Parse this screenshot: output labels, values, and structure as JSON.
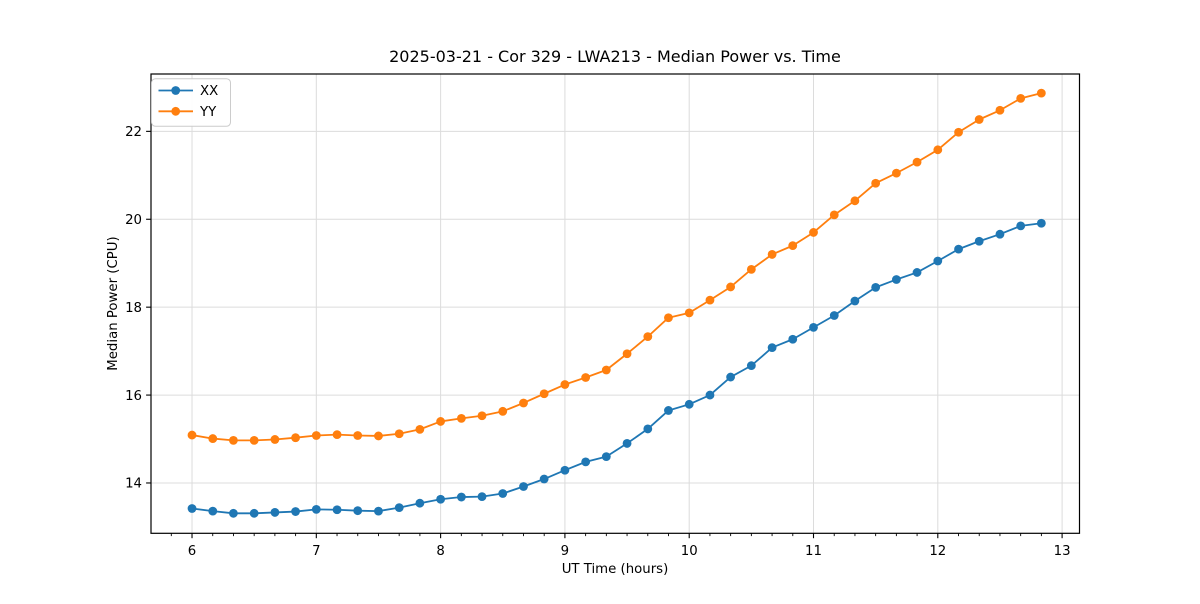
{
  "figure": {
    "title": "2025-03-21 - Cor 329 - LWA213 - Median Power vs. Time"
  },
  "chart_data": {
    "type": "line",
    "title": "2025-03-21 - Cor 329 - LWA213 - Median Power vs. Time",
    "xlabel": "UT Time (hours)",
    "ylabel": "Median Power (CPU)",
    "x": [
      6.0,
      6.167,
      6.333,
      6.5,
      6.667,
      6.833,
      7.0,
      7.167,
      7.333,
      7.5,
      7.667,
      7.833,
      8.0,
      8.167,
      8.333,
      8.5,
      8.667,
      8.833,
      9.0,
      9.167,
      9.333,
      9.5,
      9.667,
      9.833,
      10.0,
      10.167,
      10.333,
      10.5,
      10.667,
      10.833,
      11.0,
      11.167,
      11.333,
      11.5,
      11.667,
      11.833,
      12.0,
      12.167,
      12.333,
      12.5,
      12.667,
      12.833
    ],
    "series": [
      {
        "name": "XX",
        "color": "#1f77b4",
        "values": [
          13.42,
          13.36,
          13.31,
          13.31,
          13.33,
          13.35,
          13.4,
          13.39,
          13.37,
          13.36,
          13.44,
          13.54,
          13.63,
          13.68,
          13.69,
          13.76,
          13.92,
          14.09,
          14.29,
          14.48,
          14.6,
          14.9,
          15.23,
          15.65,
          15.79,
          16.0,
          16.41,
          16.67,
          17.08,
          17.27,
          17.54,
          17.81,
          18.14,
          18.45,
          18.63,
          18.79,
          19.05,
          19.32,
          19.5,
          19.66,
          19.85,
          19.91
        ]
      },
      {
        "name": "YY",
        "color": "#ff7f0e",
        "values": [
          15.09,
          15.01,
          14.97,
          14.97,
          14.99,
          15.03,
          15.08,
          15.1,
          15.08,
          15.07,
          15.12,
          15.22,
          15.4,
          15.47,
          15.53,
          15.63,
          15.82,
          16.03,
          16.24,
          16.4,
          16.57,
          16.94,
          17.33,
          17.76,
          17.87,
          18.16,
          18.46,
          18.86,
          19.2,
          19.4,
          19.7,
          20.1,
          20.42,
          20.82,
          21.05,
          21.3,
          21.58,
          21.98,
          22.27,
          22.48,
          22.75,
          22.87
        ]
      }
    ],
    "xticks": [
      6,
      7,
      8,
      9,
      10,
      11,
      12,
      13
    ],
    "yticks": [
      14,
      16,
      18,
      20,
      22
    ],
    "xlim": [
      5.67,
      13.14
    ],
    "ylim": [
      12.855,
      23.305
    ],
    "x_minor_tick_step": 0.16667,
    "grid": true,
    "legend_position": "upper-left",
    "marker": "circle",
    "colors": {
      "grid": "#dcdcdc",
      "spine": "#000000",
      "text": "#000000",
      "background": "#ffffff"
    }
  }
}
